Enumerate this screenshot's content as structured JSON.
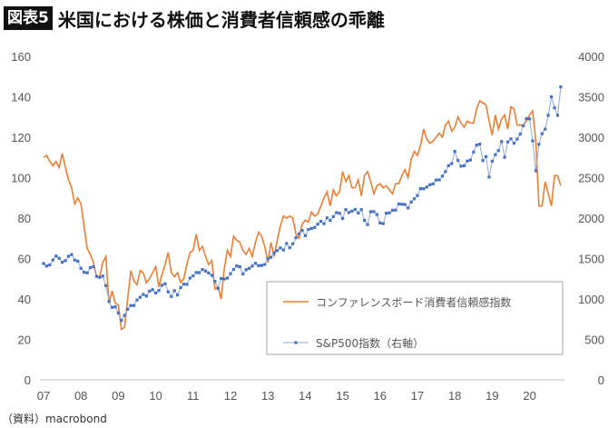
{
  "title": {
    "badge": "図表5",
    "text": "米国における株価と消費者信頼感の乖離"
  },
  "source": "（資料）macrobond",
  "chart_data": {
    "type": "line",
    "title": "米国における株価と消費者信頼感の乖離",
    "x_ticks": [
      "07",
      "08",
      "09",
      "10",
      "11",
      "12",
      "13",
      "14",
      "15",
      "16",
      "17",
      "18",
      "19",
      "20"
    ],
    "y_left": {
      "ticks": [
        0,
        20,
        40,
        60,
        80,
        100,
        120,
        140,
        160
      ],
      "range": [
        0,
        160
      ]
    },
    "y_right": {
      "ticks": [
        0,
        500,
        1000,
        1500,
        2000,
        2500,
        3000,
        3500,
        4000
      ],
      "range": [
        0,
        4000
      ]
    },
    "grid": false,
    "legend_placement": "bottom-right",
    "colors": {
      "cci": "#ed7d31",
      "sp500_line": "#8faadc",
      "sp500_marker": "#4472c4"
    },
    "series": [
      {
        "name": "コンファレンスボード消費者信頼感指数",
        "axis": "left",
        "frequency": "monthly",
        "period": "2007-01 to 2020-11",
        "values": [
          110,
          111,
          108,
          106,
          108,
          105,
          112,
          105,
          99,
          95,
          87,
          90,
          87,
          76,
          65,
          62,
          58,
          51,
          51,
          58,
          61,
          38,
          44,
          38,
          37,
          25,
          26,
          40,
          54,
          49,
          47,
          54,
          53,
          48,
          50,
          53,
          56,
          46,
          52,
          57,
          63,
          53,
          51,
          53,
          48,
          50,
          57,
          63,
          64,
          72,
          64,
          66,
          61,
          57,
          59,
          45,
          46,
          40,
          55,
          64,
          61,
          71,
          69,
          68,
          64,
          62,
          65,
          61,
          68,
          73,
          71,
          66,
          58,
          68,
          61,
          69,
          76,
          81,
          80,
          81,
          80,
          72,
          70,
          77,
          79,
          78,
          83,
          81,
          82,
          86,
          90,
          93,
          86,
          94,
          91,
          93,
          103,
          98,
          101,
          95,
          95,
          99,
          91,
          101,
          103,
          98,
          92,
          96,
          97,
          95,
          96,
          94,
          92,
          97,
          97,
          101,
          104,
          100,
          109,
          113,
          111,
          116,
          124,
          119,
          117,
          118,
          120,
          122,
          120,
          126,
          128,
          123,
          125,
          130,
          127,
          125,
          128,
          127,
          127,
          134,
          138,
          137,
          136,
          128,
          121,
          131,
          124,
          129,
          131,
          124,
          135,
          134,
          126,
          126,
          126,
          128,
          131,
          133,
          118,
          86,
          86,
          98,
          92,
          86,
          101,
          101,
          96
        ]
      },
      {
        "name": "S&P500指数（右軸）",
        "axis": "right",
        "frequency": "monthly",
        "period": "2007-01 to 2020-11",
        "values": [
          1438,
          1407,
          1421,
          1482,
          1531,
          1503,
          1455,
          1474,
          1527,
          1549,
          1481,
          1468,
          1379,
          1331,
          1323,
          1386,
          1400,
          1280,
          1267,
          1283,
          1165,
          969,
          896,
          903,
          826,
          735,
          798,
          873,
          919,
          919,
          987,
          1021,
          1057,
          1036,
          1096,
          1115,
          1074,
          1104,
          1169,
          1187,
          1089,
          1031,
          1102,
          1049,
          1141,
          1183,
          1181,
          1258,
          1286,
          1327,
          1326,
          1364,
          1345,
          1321,
          1292,
          1219,
          1131,
          1253,
          1247,
          1258,
          1312,
          1366,
          1408,
          1398,
          1310,
          1362,
          1379,
          1407,
          1441,
          1412,
          1416,
          1426,
          1498,
          1515,
          1569,
          1598,
          1631,
          1606,
          1686,
          1633,
          1682,
          1757,
          1806,
          1848,
          1783,
          1859,
          1872,
          1884,
          1924,
          1960,
          1931,
          2003,
          1972,
          2018,
          2068,
          2059,
          1995,
          2105,
          2068,
          2086,
          2107,
          2063,
          2104,
          1972,
          1920,
          2079,
          2080,
          2044,
          1940,
          1932,
          2060,
          2065,
          2097,
          2099,
          2174,
          2171,
          2168,
          2126,
          2199,
          2239,
          2279,
          2364,
          2363,
          2384,
          2412,
          2423,
          2470,
          2472,
          2519,
          2575,
          2648,
          2674,
          2824,
          2714,
          2641,
          2648,
          2705,
          2718,
          2816,
          2902,
          2914,
          2712,
          2760,
          2507,
          2704,
          2784,
          2834,
          2946,
          2752,
          2942,
          2980,
          2926,
          2977,
          3038,
          3141,
          3231,
          3226,
          2954,
          2585,
          2912,
          3044,
          3100,
          3271,
          3500,
          3363,
          3270,
          3622
        ]
      }
    ]
  }
}
